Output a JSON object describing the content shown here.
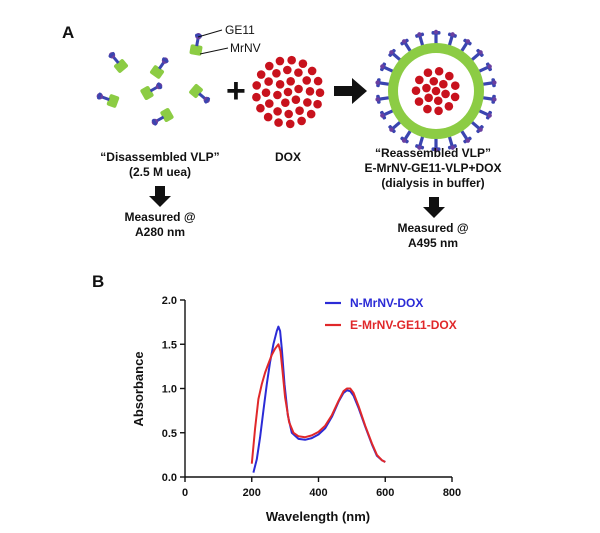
{
  "panel_a": {
    "letter": "A",
    "label_ge11": "GE11",
    "label_mrnv": "MrNV",
    "disassembled_title": "“Disassembled VLP”",
    "disassembled_sub": "(2.5 M uea)",
    "measured_left_1": "Measured @",
    "measured_left_2": "A280 nm",
    "dox_label": "DOX",
    "reassembled_title": "“Reassembled VLP”",
    "reassembled_sub1": "E-MrNV-GE11-VLP+DOX",
    "reassembled_sub2": "(dialysis in buffer)",
    "measured_right_1": "Measured @",
    "measured_right_2": "A495 nm",
    "plus_sign": "+",
    "colors": {
      "protein": "#8ccc44",
      "ge11": "#3a45b0",
      "ge11_tip": "#6a3fa0",
      "dox": "#c8121d",
      "arrow": "#111111"
    }
  },
  "panel_b": {
    "letter": "B"
  },
  "chart_data": {
    "type": "line",
    "title": "",
    "xlabel": "Wavelength (nm)",
    "ylabel": "Absorbance",
    "xlim": [
      0,
      800
    ],
    "ylim": [
      0,
      2.0
    ],
    "x_ticks": [
      "0",
      "200",
      "400",
      "600",
      "800"
    ],
    "y_ticks": [
      "0.0",
      "0.5",
      "1.0",
      "1.5",
      "2.0"
    ],
    "grid": false,
    "legend_position": "top-right",
    "series": [
      {
        "name": "N-MrNV-DOX",
        "color": "#2b2bd6",
        "points": [
          [
            205,
            0.05
          ],
          [
            215,
            0.2
          ],
          [
            225,
            0.45
          ],
          [
            235,
            0.75
          ],
          [
            245,
            1.05
          ],
          [
            255,
            1.3
          ],
          [
            265,
            1.5
          ],
          [
            275,
            1.65
          ],
          [
            280,
            1.7
          ],
          [
            285,
            1.65
          ],
          [
            290,
            1.45
          ],
          [
            298,
            1.05
          ],
          [
            308,
            0.7
          ],
          [
            320,
            0.5
          ],
          [
            340,
            0.43
          ],
          [
            360,
            0.42
          ],
          [
            380,
            0.44
          ],
          [
            400,
            0.48
          ],
          [
            420,
            0.55
          ],
          [
            440,
            0.68
          ],
          [
            460,
            0.85
          ],
          [
            475,
            0.95
          ],
          [
            485,
            0.98
          ],
          [
            495,
            0.97
          ],
          [
            505,
            0.92
          ],
          [
            520,
            0.78
          ],
          [
            540,
            0.57
          ],
          [
            560,
            0.37
          ],
          [
            575,
            0.24
          ],
          [
            590,
            0.19
          ],
          [
            600,
            0.17
          ]
        ]
      },
      {
        "name": "E-MrNV-GE11-DOX",
        "color": "#e0282a",
        "points": [
          [
            200,
            0.15
          ],
          [
            210,
            0.55
          ],
          [
            220,
            0.88
          ],
          [
            230,
            1.05
          ],
          [
            240,
            1.18
          ],
          [
            250,
            1.28
          ],
          [
            260,
            1.38
          ],
          [
            270,
            1.45
          ],
          [
            280,
            1.5
          ],
          [
            286,
            1.42
          ],
          [
            292,
            1.2
          ],
          [
            300,
            0.9
          ],
          [
            312,
            0.62
          ],
          [
            325,
            0.5
          ],
          [
            340,
            0.46
          ],
          [
            360,
            0.45
          ],
          [
            380,
            0.47
          ],
          [
            400,
            0.51
          ],
          [
            420,
            0.58
          ],
          [
            440,
            0.7
          ],
          [
            460,
            0.86
          ],
          [
            475,
            0.97
          ],
          [
            485,
            1.0
          ],
          [
            495,
            1.0
          ],
          [
            505,
            0.95
          ],
          [
            520,
            0.8
          ],
          [
            540,
            0.58
          ],
          [
            560,
            0.38
          ],
          [
            575,
            0.25
          ],
          [
            590,
            0.19
          ],
          [
            600,
            0.17
          ]
        ]
      }
    ]
  }
}
